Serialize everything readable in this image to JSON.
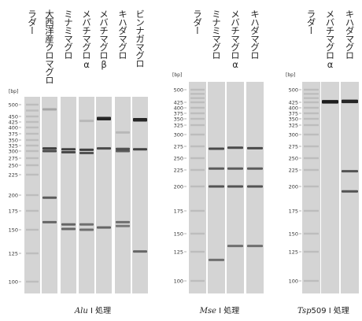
{
  "unit_label": "[bp]",
  "ticks_left": [
    "500",
    "450",
    "425",
    "400",
    "375",
    "350",
    "325",
    "300",
    "275",
    "250",
    "225",
    "200",
    "175",
    "150",
    "125",
    "100"
  ],
  "ticks_mid": [
    "500",
    "425",
    "400",
    "375",
    "350",
    "325",
    "300",
    "275",
    "250",
    "225",
    "200",
    "175",
    "150",
    "125",
    "100"
  ],
  "ticks_right": [
    "500",
    "425",
    "400",
    "375",
    "350",
    "325",
    "300",
    "275",
    "250",
    "225",
    "200",
    "175",
    "150",
    "125",
    "100"
  ],
  "panels": [
    {
      "lanes": [
        {
          "label": "ラダー",
          "ladder": true,
          "bands": []
        },
        {
          "label": "大西洋産クロマグロ",
          "bands": [
            {
              "bp": 480,
              "i": 0.25
            },
            {
              "bp": 312,
              "i": 0.8
            },
            {
              "bp": 300,
              "i": 0.75
            },
            {
              "bp": 196,
              "i": 0.65
            },
            {
              "bp": 160,
              "i": 0.6
            }
          ]
        },
        {
          "label": "ミナミマグロ",
          "bands": [
            {
              "bp": 308,
              "i": 0.8
            },
            {
              "bp": 296,
              "i": 0.75
            },
            {
              "bp": 157,
              "i": 0.6
            },
            {
              "bp": 151,
              "i": 0.6
            }
          ]
        },
        {
          "label": "メバチマグロα",
          "bands": [
            {
              "bp": 430,
              "i": 0.15
            },
            {
              "bp": 306,
              "i": 0.8
            },
            {
              "bp": 293,
              "i": 0.7
            },
            {
              "bp": 157,
              "i": 0.55
            },
            {
              "bp": 150,
              "i": 0.55
            }
          ]
        },
        {
          "label": "メバチマグロβ",
          "bands": [
            {
              "bp": 440,
              "i": 0.95
            },
            {
              "bp": 312,
              "i": 0.75
            },
            {
              "bp": 153,
              "i": 0.6
            }
          ]
        },
        {
          "label": "キハダマグロ",
          "bands": [
            {
              "bp": 380,
              "i": 0.15
            },
            {
              "bp": 310,
              "i": 0.7
            },
            {
              "bp": 300,
              "i": 0.65
            },
            {
              "bp": 160,
              "i": 0.55
            },
            {
              "bp": 155,
              "i": 0.5
            }
          ]
        },
        {
          "label": "ビンナガマグロ",
          "bands": [
            {
              "bp": 435,
              "i": 0.95
            },
            {
              "bp": 308,
              "i": 0.8
            },
            {
              "bp": 127,
              "i": 0.6
            }
          ]
        }
      ],
      "caption_italic": "Alu",
      "caption_rest": " I 処理"
    },
    {
      "lanes": [
        {
          "label": "ラダー",
          "ladder": true,
          "bands": []
        },
        {
          "label": "ミナミマグロ",
          "bands": [
            {
              "bp": 270,
              "i": 0.75
            },
            {
              "bp": 228,
              "i": 0.65
            },
            {
              "bp": 200,
              "i": 0.7
            },
            {
              "bp": 118,
              "i": 0.55
            }
          ]
        },
        {
          "label": "メバチマグロα",
          "bands": [
            {
              "bp": 272,
              "i": 0.75
            },
            {
              "bp": 228,
              "i": 0.65
            },
            {
              "bp": 200,
              "i": 0.7
            },
            {
              "bp": 133,
              "i": 0.55
            }
          ]
        },
        {
          "label": "キハダマグロ",
          "bands": [
            {
              "bp": 271,
              "i": 0.75
            },
            {
              "bp": 228,
              "i": 0.65
            },
            {
              "bp": 200,
              "i": 0.7
            },
            {
              "bp": 133,
              "i": 0.55
            }
          ]
        }
      ],
      "caption_italic": "Mse",
      "caption_rest": " I 処理"
    },
    {
      "lanes": [
        {
          "label": "ラダー",
          "ladder": true,
          "bands": []
        },
        {
          "label": "メバチマグロα",
          "bands": [
            {
              "bp": 428,
              "i": 1.0
            }
          ]
        },
        {
          "label": "キハダマグロ",
          "bands": [
            {
              "bp": 430,
              "i": 0.95
            },
            {
              "bp": 223,
              "i": 0.7
            },
            {
              "bp": 195,
              "i": 0.7
            }
          ]
        }
      ],
      "caption_italic": "Tsp",
      "caption_rest": "509 I 処理"
    }
  ],
  "colors": {
    "lane_bg": "#d4d4d4",
    "band": "#1c1c1c",
    "ladder_band": "#aaaaaa"
  }
}
